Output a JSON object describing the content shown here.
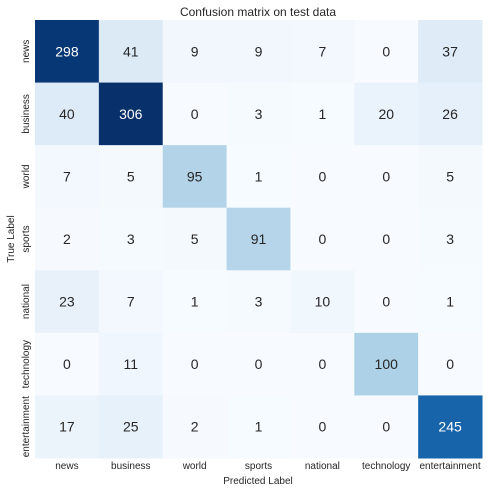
{
  "chart_data": {
    "type": "heatmap",
    "title": "Confusion matrix on test data",
    "xlabel": "Predicted Label",
    "ylabel": "True Label",
    "x_categories": [
      "news",
      "business",
      "world",
      "sports",
      "national",
      "technology",
      "entertainment"
    ],
    "y_categories": [
      "news",
      "business",
      "world",
      "sports",
      "national",
      "technology",
      "entertainment"
    ],
    "values": [
      [
        298,
        41,
        9,
        9,
        7,
        0,
        37
      ],
      [
        40,
        306,
        0,
        3,
        1,
        20,
        26
      ],
      [
        7,
        5,
        95,
        1,
        0,
        0,
        5
      ],
      [
        2,
        3,
        5,
        91,
        0,
        0,
        3
      ],
      [
        23,
        7,
        1,
        3,
        10,
        0,
        1
      ],
      [
        0,
        11,
        0,
        0,
        0,
        100,
        0
      ],
      [
        17,
        25,
        2,
        1,
        0,
        0,
        245
      ]
    ],
    "colormap": "Blues",
    "value_range": [
      0,
      306
    ],
    "colorbar": false,
    "grid": false
  }
}
